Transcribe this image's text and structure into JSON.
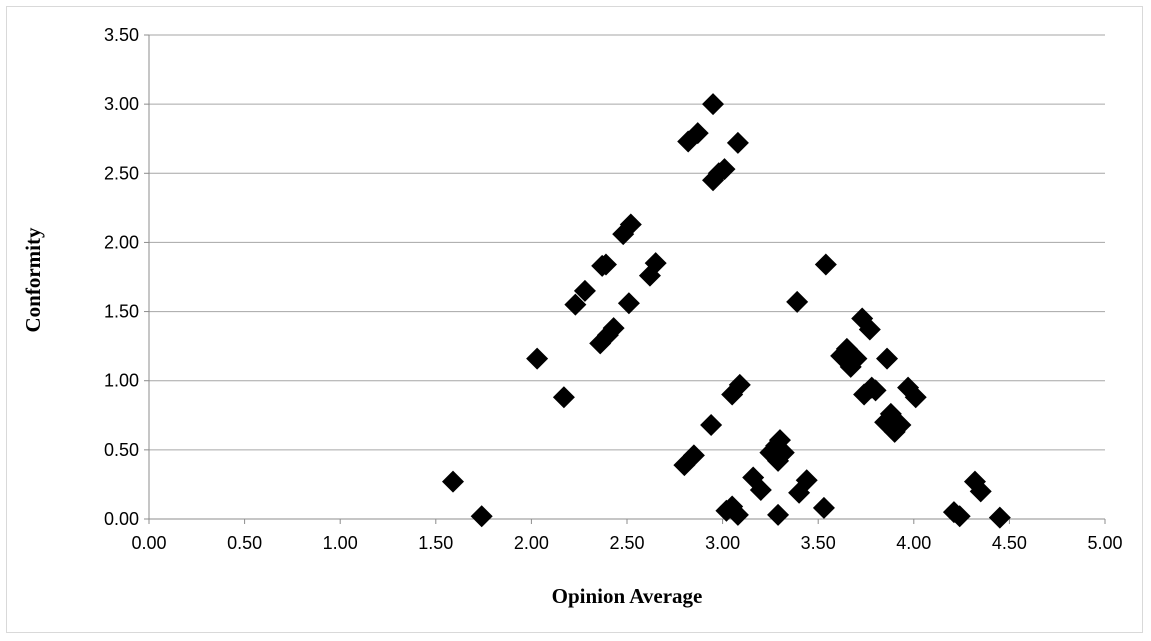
{
  "chart_data": {
    "type": "scatter",
    "xlabel": "Opinion Average",
    "ylabel": "Conformity",
    "xlim": [
      0,
      5
    ],
    "ylim": [
      0,
      3.5
    ],
    "grid": "horizontal-major",
    "legend": "none",
    "marker": "diamond",
    "marker_color": "#000000",
    "x_tick_labels": [
      "0.00",
      "0.50",
      "1.00",
      "1.50",
      "2.00",
      "2.50",
      "3.00",
      "3.50",
      "4.00",
      "4.50",
      "5.00"
    ],
    "y_tick_labels": [
      "0.00",
      "0.50",
      "1.00",
      "1.50",
      "2.00",
      "2.50",
      "3.00",
      "3.50"
    ],
    "series": [
      {
        "points": [
          [
            1.59,
            0.27
          ],
          [
            1.74,
            0.02
          ],
          [
            2.03,
            1.16
          ],
          [
            2.17,
            0.88
          ],
          [
            2.23,
            1.55
          ],
          [
            2.28,
            1.65
          ],
          [
            2.37,
            1.83
          ],
          [
            2.39,
            1.84
          ],
          [
            2.36,
            1.27
          ],
          [
            2.4,
            1.33
          ],
          [
            2.43,
            1.38
          ],
          [
            2.48,
            2.06
          ],
          [
            2.52,
            2.13
          ],
          [
            2.51,
            1.56
          ],
          [
            2.62,
            1.76
          ],
          [
            2.65,
            1.85
          ],
          [
            2.8,
            0.39
          ],
          [
            2.85,
            0.46
          ],
          [
            2.82,
            2.73
          ],
          [
            2.87,
            2.79
          ],
          [
            2.95,
            3.0
          ],
          [
            2.95,
            2.45
          ],
          [
            2.98,
            2.5
          ],
          [
            3.01,
            2.53
          ],
          [
            2.94,
            0.68
          ],
          [
            3.05,
            0.9
          ],
          [
            3.09,
            0.97
          ],
          [
            3.08,
            2.72
          ],
          [
            3.02,
            0.06
          ],
          [
            3.05,
            0.09
          ],
          [
            3.08,
            0.03
          ],
          [
            3.16,
            0.3
          ],
          [
            3.2,
            0.21
          ],
          [
            3.25,
            0.48
          ],
          [
            3.28,
            0.53
          ],
          [
            3.3,
            0.57
          ],
          [
            3.29,
            0.42
          ],
          [
            3.32,
            0.48
          ],
          [
            3.29,
            0.03
          ],
          [
            3.4,
            0.19
          ],
          [
            3.44,
            0.28
          ],
          [
            3.53,
            0.08
          ],
          [
            3.54,
            1.84
          ],
          [
            3.39,
            1.57
          ],
          [
            3.62,
            1.18
          ],
          [
            3.65,
            1.23
          ],
          [
            3.67,
            1.1
          ],
          [
            3.7,
            1.16
          ],
          [
            3.73,
            1.45
          ],
          [
            3.77,
            1.37
          ],
          [
            3.74,
            0.9
          ],
          [
            3.78,
            0.95
          ],
          [
            3.8,
            0.93
          ],
          [
            3.86,
            1.16
          ],
          [
            3.85,
            0.7
          ],
          [
            3.88,
            0.76
          ],
          [
            3.9,
            0.63
          ],
          [
            3.93,
            0.68
          ],
          [
            3.97,
            0.95
          ],
          [
            4.01,
            0.88
          ],
          [
            4.21,
            0.05
          ],
          [
            4.24,
            0.02
          ],
          [
            4.32,
            0.27
          ],
          [
            4.35,
            0.2
          ],
          [
            4.45,
            0.01
          ]
        ]
      }
    ]
  }
}
